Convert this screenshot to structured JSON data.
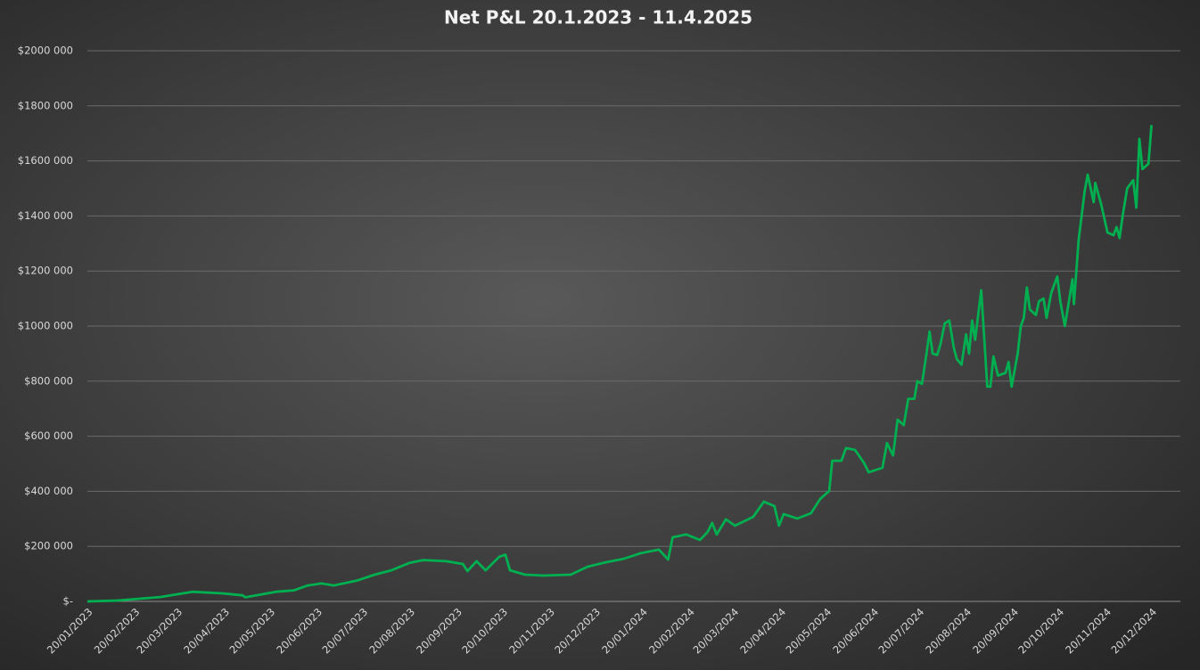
{
  "chart_data": {
    "type": "line",
    "title": "Net P&L 20.1.2023 - 11.4.2025",
    "x": [
      "20/01/2023",
      "08/02/2023",
      "09/03/2023",
      "30/03/2023",
      "19/04/2023",
      "02/05/2023",
      "04/05/2023",
      "24/05/2023",
      "05/06/2023",
      "14/06/2023",
      "23/06/2023",
      "01/07/2023",
      "16/07/2023",
      "28/07/2023",
      "08/08/2023",
      "20/08/2023",
      "29/08/2023",
      "13/09/2023",
      "24/09/2023",
      "27/09/2023",
      "03/10/2023",
      "09/10/2023",
      "18/10/2023",
      "22/10/2023",
      "25/10/2023",
      "04/11/2023",
      "16/11/2023",
      "04/12/2023",
      "15/12/2023",
      "27/12/2023",
      "08/01/2024",
      "19/01/2024",
      "31/01/2024",
      "06/02/2024",
      "09/02/2024",
      "18/02/2024",
      "27/02/2024",
      "03/03/2024",
      "06/03/2024",
      "09/03/2024",
      "15/03/2024",
      "21/03/2024",
      "02/04/2024",
      "09/04/2024",
      "16/04/2024",
      "19/04/2024",
      "22/04/2024",
      "01/05/2024",
      "10/05/2024",
      "16/05/2024",
      "22/05/2024",
      "24/05/2024",
      "30/05/2024",
      "02/06/2024",
      "08/06/2024",
      "14/06/2024",
      "17/06/2024",
      "26/06/2024",
      "29/06/2024",
      "03/07/2024",
      "06/07/2024",
      "10/07/2024",
      "13/07/2024",
      "17/07/2024",
      "19/07/2024",
      "22/07/2024",
      "25/07/2024",
      "27/07/2024",
      "29/07/2024",
      "01/08/2024",
      "03/08/2024",
      "06/08/2024",
      "09/08/2024",
      "12/08/2024",
      "14/08/2024",
      "17/08/2024",
      "20/08/2024",
      "22/08/2024",
      "24/08/2024",
      "26/08/2024",
      "30/08/2024",
      "03/09/2024",
      "05/09/2024",
      "07/09/2024",
      "10/09/2024",
      "15/09/2024",
      "17/09/2024",
      "19/09/2024",
      "23/09/2024",
      "25/09/2024",
      "27/09/2024",
      "29/09/2024",
      "01/10/2024",
      "05/10/2024",
      "07/10/2024",
      "10/10/2024",
      "12/10/2024",
      "15/10/2024",
      "19/10/2024",
      "21/10/2024",
      "24/10/2024",
      "27/10/2024",
      "29/10/2024",
      "30/10/2024",
      "02/11/2024",
      "06/11/2024",
      "08/11/2024",
      "12/11/2024",
      "13/11/2024",
      "17/11/2024",
      "21/11/2024",
      "25/11/2024",
      "27/11/2024",
      "29/11/2024",
      "01/12/2024",
      "04/12/2024",
      "08/12/2024",
      "10/12/2024",
      "12/12/2024",
      "14/12/2024",
      "18/12/2024",
      "20/12/2024"
    ],
    "series": [
      {
        "name": "Net P&L",
        "color": "#00b050",
        "values": [
          0,
          3000,
          16000,
          35000,
          29000,
          22000,
          15000,
          35000,
          40000,
          58000,
          65000,
          58000,
          75000,
          97000,
          113000,
          140000,
          150000,
          146000,
          136000,
          110000,
          146000,
          113000,
          162000,
          170000,
          113000,
          97000,
          94000,
          97000,
          126000,
          142000,
          155000,
          175000,
          188000,
          152000,
          233000,
          243000,
          223000,
          252000,
          285000,
          243000,
          298000,
          275000,
          307000,
          362000,
          346000,
          275000,
          317000,
          301000,
          320000,
          372000,
          401000,
          511000,
          511000,
          557000,
          550000,
          502000,
          469000,
          485000,
          575000,
          530000,
          660000,
          640000,
          736000,
          736000,
          800000,
          790000,
          900000,
          980000,
          900000,
          895000,
          930000,
          1010000,
          1020000,
          920000,
          880000,
          860000,
          970000,
          900000,
          1020000,
          950000,
          1130000,
          780000,
          780000,
          890000,
          820000,
          830000,
          870000,
          780000,
          900000,
          1000000,
          1030000,
          1140000,
          1060000,
          1040000,
          1090000,
          1100000,
          1030000,
          1120000,
          1180000,
          1090000,
          1000000,
          1100000,
          1170000,
          1080000,
          1310000,
          1490000,
          1550000,
          1450000,
          1520000,
          1440000,
          1340000,
          1330000,
          1360000,
          1320000,
          1400000,
          1500000,
          1530000,
          1430000,
          1680000,
          1570000,
          1590000,
          1730000
        ]
      }
    ],
    "xlim": [
      "20/01/2023",
      "08/01/2025"
    ],
    "xticks": [
      "20/01/2023",
      "20/02/2023",
      "20/03/2023",
      "20/04/2023",
      "20/05/2023",
      "20/06/2023",
      "20/07/2023",
      "20/08/2023",
      "20/09/2023",
      "20/10/2023",
      "20/11/2023",
      "20/12/2023",
      "20/01/2024",
      "20/02/2024",
      "20/03/2024",
      "20/04/2024",
      "20/05/2024",
      "20/06/2024",
      "20/07/2024",
      "20/08/2024",
      "20/09/2024",
      "20/10/2024",
      "20/11/2024",
      "20/12/2024"
    ],
    "ylim": [
      0,
      2000000
    ],
    "yticks": [
      {
        "value": 0,
        "label": "$-"
      },
      {
        "value": 200000,
        "label": "$200 000"
      },
      {
        "value": 400000,
        "label": "$400 000"
      },
      {
        "value": 600000,
        "label": "$600 000"
      },
      {
        "value": 800000,
        "label": "$800 000"
      },
      {
        "value": 1000000,
        "label": "$1000 000"
      },
      {
        "value": 1200000,
        "label": "$1200 000"
      },
      {
        "value": 1400000,
        "label": "$1400 000"
      },
      {
        "value": 1600000,
        "label": "$1600 000"
      },
      {
        "value": 1800000,
        "label": "$1800 000"
      },
      {
        "value": 2000000,
        "label": "$2000 000"
      }
    ],
    "grid": true
  }
}
